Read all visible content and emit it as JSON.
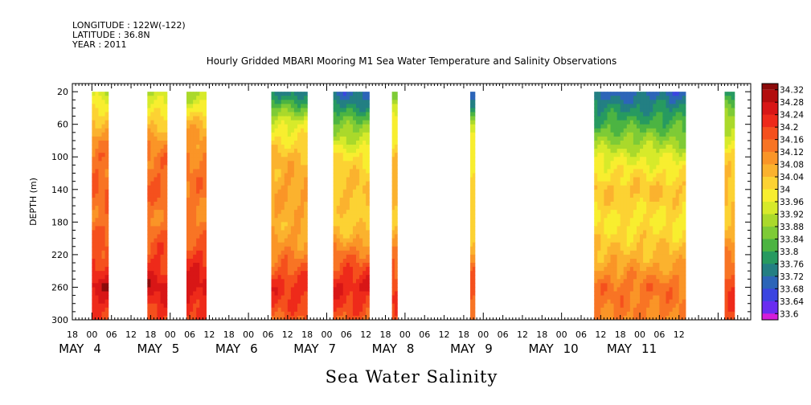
{
  "header": {
    "longitude": "LONGITUDE : 122W(-122)",
    "latitude": "LATITUDE : 36.8N",
    "year": "YEAR : 2011"
  },
  "chart_data": {
    "type": "heatmap",
    "title": "Hourly Gridded MBARI Mooring M1 Sea Water Temperature and Salinity Observations",
    "xlabel": "Sea Water Salinity",
    "ylabel": "DEPTH (m)",
    "x_axis": {
      "unit": "hours since MAY 3 18:00",
      "range": [
        0,
        208
      ],
      "hour_tick_labels": [
        "18",
        "00",
        "06",
        "12",
        "18",
        "00",
        "06",
        "12",
        "18",
        "00",
        "06",
        "12",
        "18",
        "00",
        "06",
        "12",
        "18",
        "00",
        "06",
        "12",
        "18",
        "00",
        "06",
        "12",
        "18",
        "00",
        "06",
        "12",
        "18",
        "00",
        "06",
        "12"
      ],
      "month_labels": [
        "MAY",
        "MAY",
        "MAY",
        "MAY",
        "MAY",
        "MAY",
        "MAY",
        "MAY"
      ],
      "day_labels": [
        "4",
        "5",
        "6",
        "7",
        "8",
        "9",
        "10",
        "11"
      ],
      "day_hours": [
        6,
        30,
        54,
        78,
        102,
        126,
        150,
        174
      ]
    },
    "y_axis": {
      "range": [
        10,
        300
      ],
      "inverted": true,
      "ticks": [
        20,
        60,
        100,
        140,
        180,
        220,
        260,
        300
      ]
    },
    "colorbar": {
      "levels": [
        "34.32",
        "34.28",
        "34.24",
        "34.2",
        "34.16",
        "34.12",
        "34.08",
        "34.04",
        "34",
        "33.96",
        "33.92",
        "33.88",
        "33.84",
        "33.8",
        "33.76",
        "33.72",
        "33.68",
        "33.64",
        "33.6"
      ],
      "colors": [
        "#8c0b0b",
        "#b30d0d",
        "#d81616",
        "#ee2a1a",
        "#f5501d",
        "#f87424",
        "#fa9527",
        "#fbb22e",
        "#fcd233",
        "#f8ee2f",
        "#d7ea2a",
        "#aad92b",
        "#7ecb36",
        "#4cb442",
        "#279a60",
        "#237f83",
        "#2c65b8",
        "#3b45e0",
        "#6a2cf0",
        "#b11ef0",
        "#d51dd9"
      ]
    },
    "data_blocks": [
      {
        "x": [
          6,
          11
        ],
        "profile": [
          33.96,
          34.1,
          34.18,
          34.2,
          34.18,
          34.22,
          34.3,
          34.24
        ]
      },
      {
        "x": [
          23,
          29
        ],
        "profile": [
          33.95,
          34.08,
          34.18,
          34.2,
          34.17,
          34.23,
          34.3,
          34.23
        ]
      },
      {
        "x": [
          35,
          41
        ],
        "profile": [
          33.94,
          34.1,
          34.16,
          34.18,
          34.16,
          34.24,
          34.3,
          34.23
        ]
      },
      {
        "x": [
          61,
          72
        ],
        "profile": [
          33.78,
          33.99,
          34.09,
          34.12,
          34.1,
          34.16,
          34.26,
          34.2
        ]
      },
      {
        "x": [
          80,
          91
        ],
        "profile": [
          33.74,
          33.9,
          34.04,
          34.09,
          34.05,
          34.18,
          34.28,
          34.2
        ]
      },
      {
        "x": [
          98,
          99.6
        ],
        "profile": [
          33.88,
          34.02,
          34.08,
          34.1,
          34.08,
          34.16,
          34.26,
          34.22
        ]
      },
      {
        "x": [
          122,
          123.4
        ],
        "profile": [
          33.72,
          33.94,
          34.04,
          34.06,
          34.04,
          34.14,
          34.22,
          34.18
        ]
      },
      {
        "x": [
          160,
          188
        ],
        "profile": [
          33.74,
          33.86,
          33.99,
          34.08,
          34.03,
          34.09,
          34.18,
          34.16
        ]
      },
      {
        "x": [
          200,
          203
        ],
        "profile": [
          33.82,
          33.96,
          34.04,
          34.1,
          34.07,
          34.15,
          34.25,
          34.2
        ]
      }
    ],
    "grid": false,
    "legend": "colorbar-right"
  }
}
